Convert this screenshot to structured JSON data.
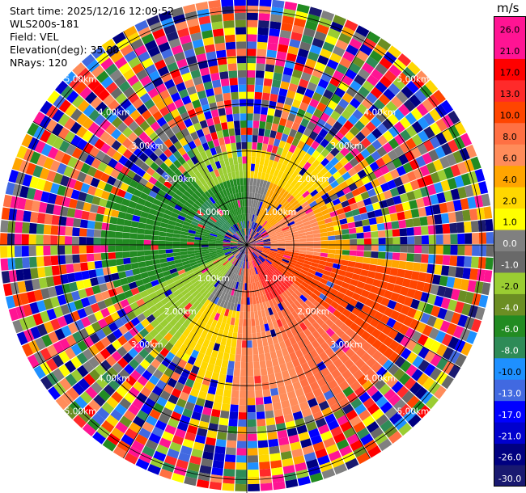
{
  "info": {
    "start_time": "Start time: 2025/12/16 12:09:52",
    "site": "WLS200s-181",
    "field": "Field: VEL",
    "elevation": "Elevation(deg): 35.00",
    "nrays": "NRays: 120"
  },
  "chart_data": {
    "type": "heatmap",
    "projection": "polar",
    "field": "VEL",
    "n_rays": 120,
    "max_range_km": 5.25,
    "range_rings_km": [
      1.0,
      2.0,
      3.0,
      4.0,
      5.0
    ],
    "ring_labels": [
      "1.00km",
      "2.00km",
      "3.00km",
      "4.00km",
      "5.00km"
    ],
    "colorbar": {
      "unit": "m/s",
      "ticks": [
        "26.0",
        "21.0",
        "17.0",
        "13.0",
        "10.0",
        "8.0",
        "6.0",
        "4.0",
        "2.0",
        "1.0",
        "0.0",
        "-1.0",
        "-2.0",
        "-4.0",
        "-6.0",
        "-8.0",
        "-10.0",
        "-13.0",
        "-17.0",
        "-21.0",
        "-26.0",
        "-30.0"
      ],
      "colors": [
        "#ff1493",
        "#ff1493",
        "#ff0000",
        "#ff2a2a",
        "#ff4500",
        "#ff7043",
        "#ff8c5a",
        "#ffa500",
        "#ffd700",
        "#ffff00",
        "#808080",
        "#696969",
        "#9acd32",
        "#6b8e23",
        "#228b22",
        "#2e8b57",
        "#1e90ff",
        "#4169e1",
        "#0000ff",
        "#0000cd",
        "#000080",
        "#191970"
      ]
    }
  }
}
